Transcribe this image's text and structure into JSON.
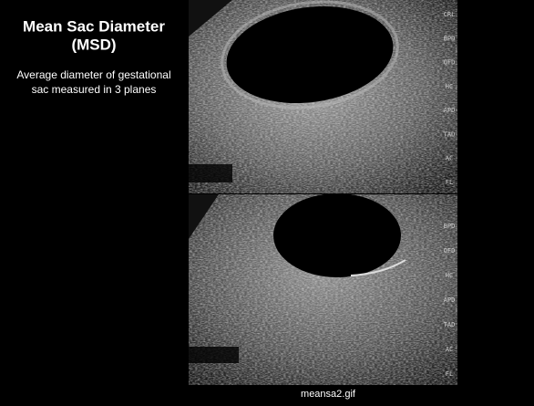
{
  "header": {
    "title_lines": [
      "Mean Sac Diameter",
      "(MSD)"
    ],
    "description_lines": [
      "Average diameter of gestational",
      "sac measured in 3 planes"
    ]
  },
  "images": [
    {
      "labels": [
        "CRL",
        "BPD",
        "OFD",
        "HC",
        "APD",
        "TAD",
        "AC",
        "FL"
      ]
    },
    {
      "labels": [
        "BPD",
        "OFD",
        "HC",
        "APD",
        "TAD",
        "AC",
        "FL"
      ]
    }
  ],
  "caption": "meansa2.gif"
}
